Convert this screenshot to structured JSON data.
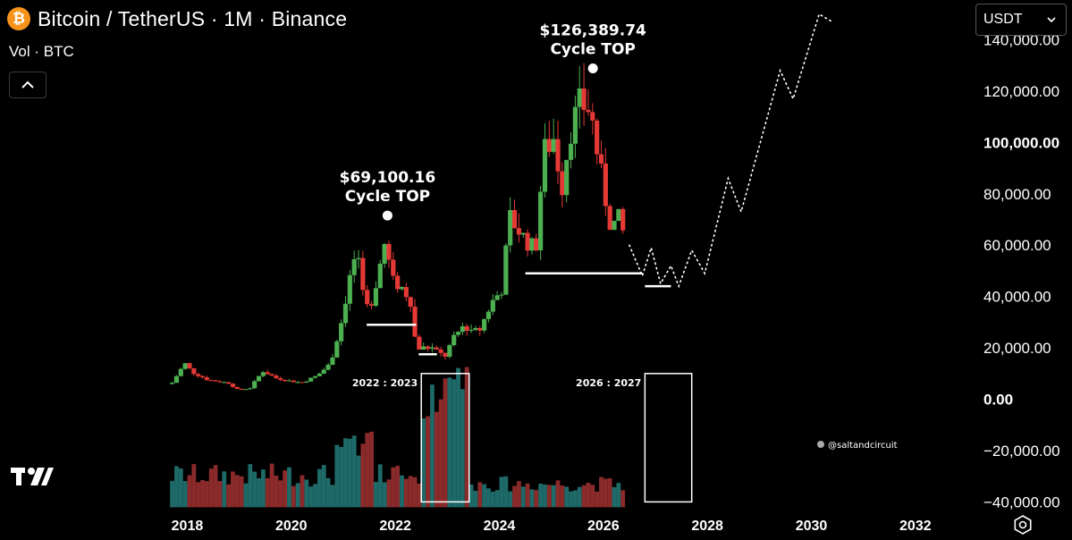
{
  "header": {
    "symbol_icon": "bitcoin-icon",
    "title": "Bitcoin / TetherUS · 1M · Binance"
  },
  "volume_label": "Vol · BTC",
  "currency_select": {
    "value": "USDT",
    "icon": "chevron-down-icon"
  },
  "collapse_button": {
    "icon": "chevron-up-icon"
  },
  "settings_button": {
    "icon": "gear-icon"
  },
  "watermark": "@saltandcircuit",
  "colors": {
    "up": "#4caf50",
    "down": "#e53935",
    "vol_up": "#1e6a68",
    "vol_down": "#8b2a2a",
    "background": "#000000"
  },
  "chart_data": {
    "type": "candlestick",
    "interval": "1M",
    "x_axis": {
      "ticks": [
        "2018",
        "2020",
        "2022",
        "2024",
        "2026",
        "2028",
        "2030",
        "2032"
      ],
      "range": [
        2017.7,
        2033.0
      ]
    },
    "y_axis": {
      "ticks": [
        140000,
        120000,
        100000,
        80000,
        60000,
        40000,
        20000,
        0,
        -20000,
        -40000
      ],
      "tick_labels": [
        "140,000.00",
        "120,000.00",
        "100,000.00",
        "80,000.00",
        "60,000.00",
        "40,000.00",
        "20,000.00",
        "0.00",
        "−20,000.00",
        "−40,000.00"
      ],
      "range": [
        -43000,
        152000
      ],
      "position": "right"
    },
    "key_points": [
      {
        "x": 2017.71,
        "close": 6400
      },
      {
        "x": 2017.95,
        "close": 14000
      },
      {
        "x": 2018.1,
        "close": 10500
      },
      {
        "x": 2018.4,
        "close": 7500
      },
      {
        "x": 2018.8,
        "close": 6300
      },
      {
        "x": 2018.95,
        "close": 3800
      },
      {
        "x": 2019.2,
        "close": 4100
      },
      {
        "x": 2019.45,
        "close": 11000
      },
      {
        "x": 2019.7,
        "close": 8300
      },
      {
        "x": 2019.95,
        "close": 7200
      },
      {
        "x": 2020.2,
        "close": 6400
      },
      {
        "x": 2020.5,
        "close": 9200
      },
      {
        "x": 2020.75,
        "close": 13800
      },
      {
        "x": 2020.95,
        "close": 29000
      },
      {
        "x": 2021.1,
        "close": 45000
      },
      {
        "x": 2021.25,
        "close": 58000
      },
      {
        "x": 2021.4,
        "close": 37000
      },
      {
        "x": 2021.5,
        "close": 35000
      },
      {
        "x": 2021.65,
        "close": 47000
      },
      {
        "x": 2021.8,
        "close": 61000
      },
      {
        "x": 2021.95,
        "close": 46000
      },
      {
        "x": 2022.15,
        "close": 43000
      },
      {
        "x": 2022.3,
        "close": 38000
      },
      {
        "x": 2022.4,
        "close": 20000
      },
      {
        "x": 2022.7,
        "close": 20000
      },
      {
        "x": 2022.95,
        "close": 16500
      },
      {
        "x": 2023.1,
        "close": 23000
      },
      {
        "x": 2023.3,
        "close": 28500
      },
      {
        "x": 2023.6,
        "close": 26000
      },
      {
        "x": 2023.85,
        "close": 37500
      },
      {
        "x": 2024.05,
        "close": 43000
      },
      {
        "x": 2024.2,
        "close": 71000
      },
      {
        "x": 2024.5,
        "close": 62000
      },
      {
        "x": 2024.7,
        "close": 58000
      },
      {
        "x": 2024.85,
        "close": 96000
      },
      {
        "x": 2025.05,
        "close": 102000
      },
      {
        "x": 2025.2,
        "close": 82000
      },
      {
        "x": 2025.35,
        "close": 104000
      },
      {
        "x": 2025.55,
        "close": 115000
      },
      {
        "x": 2025.75,
        "close": 113000
      },
      {
        "x": 2025.85,
        "close": 100000
      },
      {
        "x": 2026.0,
        "close": 82000
      },
      {
        "x": 2026.15,
        "close": 67000
      },
      {
        "x": 2026.3,
        "close": 70000
      },
      {
        "x": 2026.45,
        "close": 60000
      }
    ],
    "projection": {
      "style": "dotted",
      "points": [
        {
          "x": 2026.5,
          "y": 60000
        },
        {
          "x": 2026.75,
          "y": 48000
        },
        {
          "x": 2026.92,
          "y": 59000
        },
        {
          "x": 2027.1,
          "y": 45000
        },
        {
          "x": 2027.3,
          "y": 52000
        },
        {
          "x": 2027.45,
          "y": 44000
        },
        {
          "x": 2027.7,
          "y": 58000
        },
        {
          "x": 2027.95,
          "y": 49000
        },
        {
          "x": 2028.4,
          "y": 86000
        },
        {
          "x": 2028.65,
          "y": 73000
        },
        {
          "x": 2029.4,
          "y": 128000
        },
        {
          "x": 2029.65,
          "y": 117000
        },
        {
          "x": 2030.15,
          "y": 150000
        },
        {
          "x": 2030.4,
          "y": 147000
        }
      ]
    },
    "annotations": [
      {
        "price_label": "$69,100.16",
        "caption": "Cycle TOP",
        "x": 2021.85,
        "y": 69100
      },
      {
        "price_label": "$126,389.74",
        "caption": "Cycle TOP",
        "x": 2025.8,
        "y": 126389.74
      }
    ],
    "support_lines": [
      {
        "x_start": 2021.45,
        "x_end": 2022.4,
        "y": 29000
      },
      {
        "x_start": 2022.45,
        "x_end": 2022.8,
        "y": 17500
      },
      {
        "x_start": 2024.5,
        "x_end": 2026.75,
        "y": 49000
      },
      {
        "x_start": 2026.8,
        "x_end": 2027.3,
        "y": 44000
      }
    ],
    "boxes": [
      {
        "label": "2022 : 2023",
        "x_start": 2022.5,
        "x_end": 2023.42,
        "y_top": 10000,
        "y_bottom": -40000
      },
      {
        "label": "2026 : 2027",
        "x_start": 2026.8,
        "x_end": 2027.7,
        "y_top": 10000,
        "y_bottom": -40000
      }
    ],
    "volume": {
      "note": "Volume pane plotted in the lower band of the chart",
      "highlight_range": [
        2022.5,
        2023.42
      ]
    }
  }
}
